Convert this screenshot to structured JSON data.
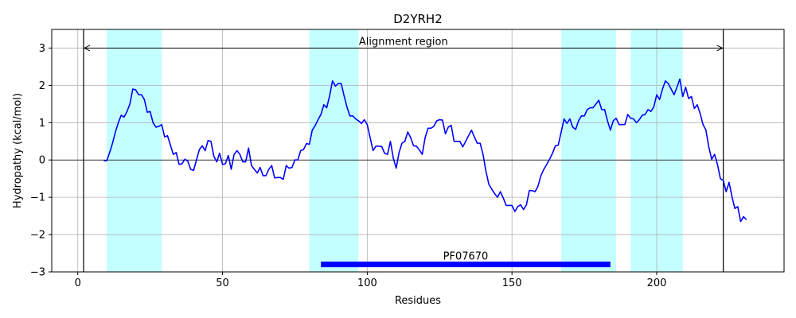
{
  "chart_data": {
    "type": "line",
    "title": "D2YRH2",
    "xlabel": "Residues",
    "ylabel": "Hydropathy (kcal/mol)",
    "xlim": [
      -9,
      244
    ],
    "ylim": [
      -3,
      3.5
    ],
    "xticks": [
      0,
      50,
      100,
      150,
      200
    ],
    "yticks": [
      -3,
      -2,
      -1,
      0,
      1,
      2,
      3
    ],
    "grid": true,
    "colors": {
      "series": "#0000ff",
      "region": "#c4ffff",
      "domain_bar": "#0000ff",
      "lines": "#000000",
      "grid": "#b0b0b0"
    },
    "shaded_regions": [
      [
        10,
        29
      ],
      [
        80,
        97
      ],
      [
        167,
        186
      ],
      [
        191,
        209
      ]
    ],
    "vertical_lines": [
      2,
      223
    ],
    "zero_line": 0,
    "alignment_region": {
      "label": "Alignment region",
      "start": 2,
      "end": 223,
      "y": 3.0
    },
    "domain": {
      "label": "PF07670",
      "start": 84,
      "end": 184,
      "y": -2.8
    },
    "series": [
      {
        "x": [
          9,
          10,
          11,
          12,
          13,
          14,
          15,
          16,
          17,
          18,
          19,
          20,
          21,
          22,
          23,
          24,
          25,
          26,
          27,
          28,
          29,
          30,
          31,
          32,
          33,
          34,
          35,
          36,
          37,
          38,
          39,
          40,
          41,
          42,
          43,
          44,
          45,
          46,
          47,
          48,
          49,
          50,
          51,
          52,
          53,
          54,
          55,
          56,
          57,
          58,
          59,
          60,
          61,
          62,
          63,
          64,
          65,
          66,
          67,
          68,
          69,
          70,
          71,
          72,
          73,
          74,
          75,
          76,
          77,
          78,
          79,
          80,
          81,
          82,
          83,
          84,
          85,
          86,
          87,
          88,
          89,
          90,
          91,
          92,
          93,
          94,
          95,
          96,
          97,
          98,
          99,
          100,
          101,
          102,
          103,
          104,
          105,
          106,
          107,
          108,
          109,
          110,
          111,
          112,
          113,
          114,
          115,
          116,
          117,
          118,
          119,
          120,
          121,
          122,
          123,
          124,
          125,
          126,
          127,
          128,
          129,
          130,
          131,
          132,
          133,
          134,
          135,
          136,
          137,
          138,
          139,
          140,
          141,
          142,
          143,
          144,
          145,
          146,
          147,
          148,
          149,
          150,
          151,
          152,
          153,
          154,
          155,
          156,
          157,
          158,
          159,
          160,
          161,
          162,
          163,
          164,
          165,
          166,
          167,
          168,
          169,
          170,
          171,
          172,
          173,
          174,
          175,
          176,
          177,
          178,
          179,
          180,
          181,
          182,
          183,
          184,
          185,
          186,
          187,
          188,
          189,
          190,
          191,
          192,
          193,
          194,
          195,
          196,
          197,
          198,
          199,
          200,
          201,
          202,
          203,
          204,
          205,
          206,
          207,
          208,
          209,
          210,
          211,
          212,
          213,
          214,
          215,
          216,
          217,
          218,
          219,
          220,
          221,
          222,
          223,
          224,
          225,
          226,
          227,
          228,
          229,
          230,
          231
        ],
        "values": [
          -0.02,
          -0.02,
          0.2,
          0.45,
          0.75,
          1.0,
          1.2,
          1.15,
          1.3,
          1.5,
          1.9,
          1.88,
          1.75,
          1.75,
          1.62,
          1.28,
          1.3,
          1.0,
          0.88,
          0.9,
          0.95,
          0.62,
          0.65,
          0.4,
          0.15,
          0.2,
          -0.12,
          -0.1,
          0.02,
          -0.03,
          -0.25,
          -0.28,
          0.0,
          0.28,
          0.38,
          0.25,
          0.52,
          0.5,
          0.1,
          -0.05,
          0.18,
          -0.12,
          -0.1,
          0.12,
          -0.25,
          0.15,
          0.25,
          0.15,
          -0.05,
          -0.05,
          0.32,
          -0.15,
          -0.25,
          -0.35,
          -0.2,
          -0.42,
          -0.42,
          -0.25,
          -0.15,
          -0.48,
          -0.47,
          -0.47,
          -0.52,
          -0.15,
          -0.22,
          -0.2,
          0.0,
          0.0,
          0.25,
          0.28,
          0.44,
          0.42,
          0.8,
          0.92,
          1.08,
          1.22,
          1.48,
          1.4,
          1.72,
          2.12,
          1.98,
          2.05,
          2.05,
          1.72,
          1.42,
          1.18,
          1.18,
          1.1,
          1.05,
          0.98,
          1.08,
          0.95,
          0.6,
          0.25,
          0.37,
          0.37,
          0.36,
          0.18,
          0.15,
          0.5,
          0.05,
          -0.22,
          0.2,
          0.45,
          0.5,
          0.75,
          0.6,
          0.38,
          0.37,
          0.27,
          0.15,
          0.6,
          0.85,
          0.85,
          0.9,
          1.05,
          1.08,
          1.07,
          0.7,
          0.88,
          0.93,
          0.5,
          0.5,
          0.5,
          0.35,
          0.5,
          0.65,
          0.8,
          0.62,
          0.45,
          0.45,
          0.15,
          -0.3,
          -0.65,
          -0.78,
          -0.9,
          -1.0,
          -0.85,
          -1.02,
          -1.22,
          -1.22,
          -1.22,
          -1.38,
          -1.25,
          -1.2,
          -1.33,
          -1.2,
          -0.82,
          -0.82,
          -0.85,
          -0.7,
          -0.42,
          -0.25,
          -0.12,
          0.02,
          0.18,
          0.38,
          0.4,
          0.75,
          1.1,
          0.98,
          1.1,
          0.88,
          0.82,
          1.05,
          1.18,
          1.18,
          1.35,
          1.4,
          1.4,
          1.5,
          1.6,
          1.35,
          1.35,
          1.05,
          0.8,
          1.05,
          1.12,
          0.95,
          0.95,
          0.95,
          1.22,
          1.12,
          1.1,
          1.0,
          1.08,
          1.2,
          1.22,
          1.35,
          1.3,
          1.42,
          1.75,
          1.62,
          1.9,
          2.12,
          2.05,
          1.9,
          1.75,
          1.95,
          2.17,
          1.7,
          1.95,
          1.65,
          1.7,
          1.38,
          1.48,
          1.25,
          0.95,
          0.8,
          0.35,
          0.02,
          0.15,
          -0.12,
          -0.5,
          -0.55,
          -0.85,
          -0.6,
          -0.98,
          -1.3,
          -1.25,
          -1.65,
          -1.52,
          -1.6
        ]
      }
    ]
  }
}
